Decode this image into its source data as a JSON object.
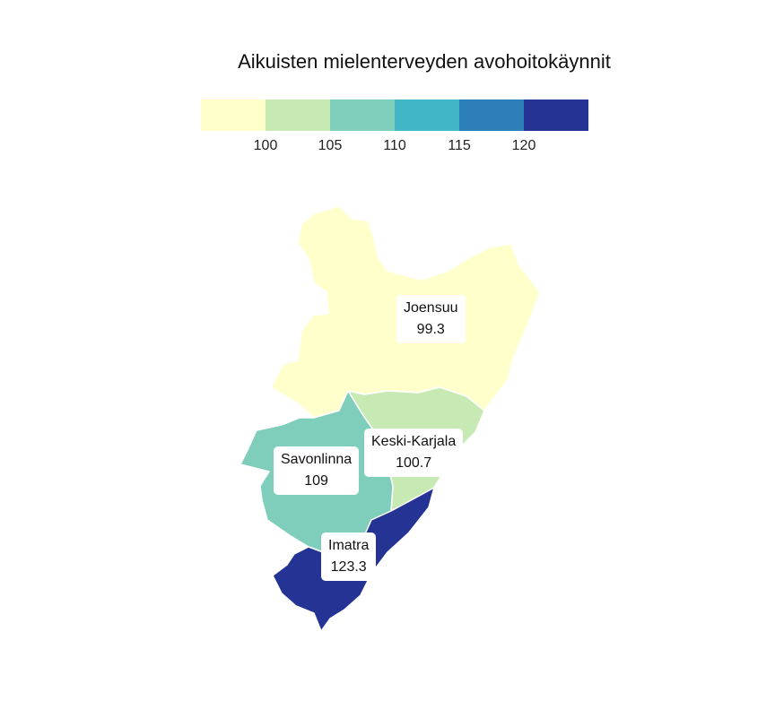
{
  "title": "Aikuisten mielenterveyden avohoitokäynnit",
  "legend": {
    "colors": [
      "#ffffcc",
      "#c7e9b4",
      "#7fcdbb",
      "#41b6c4",
      "#2c7fb8",
      "#253494"
    ],
    "ticks": [
      "100",
      "105",
      "110",
      "115",
      "120"
    ]
  },
  "regions": [
    {
      "name": "Joensuu",
      "value": "99.3",
      "color": "#ffffcc"
    },
    {
      "name": "Keski-Karjala",
      "value": "100.7",
      "color": "#c7e9b4"
    },
    {
      "name": "Savonlinna",
      "value": "109",
      "color": "#7fcdbb"
    },
    {
      "name": "Imatra",
      "value": "123.3",
      "color": "#253494"
    }
  ]
}
